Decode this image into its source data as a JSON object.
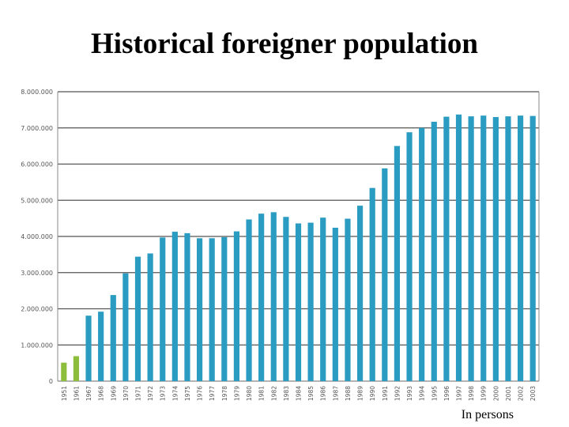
{
  "unit_note": "In persons",
  "chart_data": {
    "type": "bar",
    "title": "Historical foreigner population",
    "xlabel": "",
    "ylabel": "",
    "ylim": [
      0,
      8000000
    ],
    "yticks": [
      0,
      1000000,
      2000000,
      3000000,
      4000000,
      5000000,
      6000000,
      7000000,
      8000000
    ],
    "ytick_labels": [
      "0",
      "1.000.000",
      "2.000.000",
      "3.000.000",
      "4.000.000",
      "5.000.000",
      "6.000.000",
      "7.000.000",
      "8.000.000"
    ],
    "grid": true,
    "legend": "none",
    "categories": [
      "1951",
      "1961",
      "1967",
      "1968",
      "1969",
      "1970",
      "1971",
      "1972",
      "1973",
      "1974",
      "1975",
      "1976",
      "1977",
      "1978",
      "1979",
      "1980",
      "1981",
      "1982",
      "1983",
      "1984",
      "1985",
      "1986",
      "1987",
      "1988",
      "1989",
      "1990",
      "1991",
      "1992",
      "1993",
      "1994",
      "1995",
      "1996",
      "1997",
      "1998",
      "1999",
      "2000",
      "2001",
      "2002",
      "2003"
    ],
    "values": [
      510000,
      690000,
      1810000,
      1920000,
      2380000,
      2980000,
      3440000,
      3530000,
      3970000,
      4130000,
      4090000,
      3950000,
      3950000,
      3980000,
      4140000,
      4470000,
      4630000,
      4670000,
      4540000,
      4360000,
      4380000,
      4520000,
      4240000,
      4490000,
      4850000,
      5340000,
      5880000,
      6500000,
      6880000,
      7000000,
      7170000,
      7310000,
      7370000,
      7320000,
      7340000,
      7300000,
      7320000,
      7340000,
      7330000
    ],
    "colors": {
      "early": "#8dbe3b",
      "main": "#2a9cc2",
      "grid": "#555555",
      "axis": "#888888",
      "labels": "#555555"
    },
    "early_count": 2
  }
}
